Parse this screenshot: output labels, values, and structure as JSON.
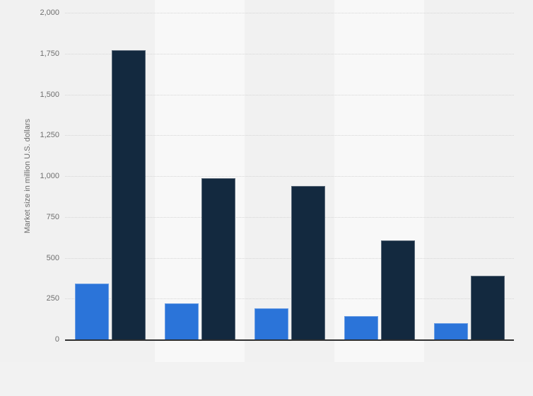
{
  "chart_data": {
    "type": "bar",
    "title": "",
    "subtitle": "",
    "ylabel": "Market size in million U.S. dollars",
    "xlabel": "",
    "ylim": [
      0,
      2000
    ],
    "y_tick_labels": [
      "2,000",
      "1,750",
      "1,500",
      "1,250",
      "1,000",
      "750",
      "500",
      "250",
      "0"
    ],
    "y_tick_values": [
      2000,
      1750,
      1500,
      1250,
      1000,
      750,
      500,
      250,
      0
    ],
    "grid": "horizontal dotted gridlines every 250, solid dark baseline at 0",
    "legend": "none",
    "x_tick_labels": [],
    "groups": 5,
    "series": [
      {
        "name": "light-blue",
        "color": "#2b74d9",
        "values": [
          340,
          220,
          190,
          145,
          100
        ]
      },
      {
        "name": "dark-navy",
        "color": "#13293f",
        "values": [
          1770,
          985,
          940,
          605,
          390
        ]
      }
    ],
    "background_bands": "alternating vertical columns behind each bar group"
  },
  "colors": {
    "page_background": "#f2f2f2",
    "chart_background": "#f1f1f1",
    "band_light": "#f8f8f8",
    "gridline": "#d6d6d6",
    "axis_line": "#303030",
    "tick_text": "#6e6e6e",
    "axis_title_text": "#6e6e6e",
    "series_blue": "#2b74d9",
    "series_navy": "#13293f"
  }
}
